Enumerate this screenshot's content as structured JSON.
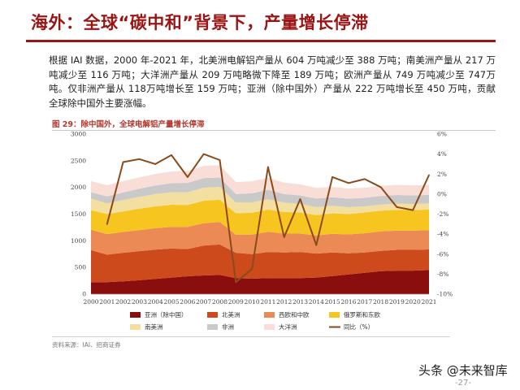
{
  "page": {
    "title": "海外：全球“碳中和”背景下，产量增长停滞",
    "intro": "根据 IAI 数据，2000 年-2021 年，北美洲电解铝产量从 604 万吨减少至 388 万吨；南美洲产量从 217 万吨减少至 116 万吨；大洋洲产量从 209 万吨略微下降至 189 万吨；欧洲产量从 749 万吨减少至 747万吨。仅非洲产量从 118万吨增长至 159 万吨；亚洲（除中国外）产量从 222 万吨增长至 450 万吨，贡献全球除中国外主要涨幅。",
    "figure_caption": "图 29：除中国外，全球电解铝产量增长停滞",
    "source": "资料来源：IAI、招商证券",
    "watermark": "头条 @未来智库",
    "page_number": "-27-"
  },
  "chart_data": {
    "type": "area",
    "x": [
      "2000",
      "2001",
      "2002",
      "2003",
      "2004",
      "2005",
      "2006",
      "2007",
      "2008",
      "2009",
      "2010",
      "2011",
      "2012",
      "2013",
      "2014",
      "2015",
      "2016",
      "2017",
      "2018",
      "2019",
      "2020",
      "2021"
    ],
    "ylim": [
      0,
      3000
    ],
    "y_ticks": [
      0,
      500,
      1000,
      1500,
      2000,
      2500,
      3000
    ],
    "y2lim": [
      -10,
      6
    ],
    "y2_ticks": [
      "6%",
      "4%",
      "2%",
      "0%",
      "-2%",
      "-4%",
      "-6%",
      "-8%",
      "-10%"
    ],
    "grid": false,
    "legend_position": "bottom",
    "series": [
      {
        "name": "亚洲（除中国）",
        "color": "#8b0e0e",
        "values": [
          222,
          225,
          240,
          260,
          285,
          310,
          335,
          350,
          360,
          300,
          290,
          300,
          300,
          300,
          310,
          340,
          370,
          400,
          430,
          440,
          440,
          450
        ]
      },
      {
        "name": "北美洲",
        "color": "#cc4a1c",
        "values": [
          604,
          515,
          535,
          545,
          550,
          545,
          510,
          560,
          570,
          475,
          460,
          490,
          480,
          490,
          450,
          440,
          395,
          380,
          380,
          390,
          390,
          388
        ]
      },
      {
        "name": "西欧和中欧",
        "color": "#ec8a55",
        "values": [
          380,
          385,
          390,
          395,
          400,
          405,
          415,
          420,
          420,
          340,
          365,
          380,
          355,
          345,
          340,
          350,
          355,
          360,
          365,
          360,
          360,
          360
        ]
      },
      {
        "name": "俄罗斯和东欧",
        "color": "#f7c51f",
        "values": [
          369,
          375,
          385,
          400,
          410,
          415,
          410,
          420,
          420,
          400,
          410,
          415,
          405,
          395,
          380,
          385,
          380,
          390,
          390,
          390,
          385,
          387
        ]
      },
      {
        "name": "南美洲",
        "color": "#f3dfa0",
        "values": [
          217,
          200,
          215,
          225,
          230,
          235,
          240,
          245,
          240,
          200,
          195,
          195,
          175,
          160,
          150,
          140,
          130,
          115,
          115,
          118,
          116,
          116
        ]
      },
      {
        "name": "非洲",
        "color": "#c9c9c9",
        "values": [
          118,
          130,
          140,
          150,
          160,
          170,
          175,
          180,
          175,
          160,
          170,
          175,
          160,
          160,
          160,
          160,
          160,
          160,
          160,
          160,
          159,
          159
        ]
      },
      {
        "name": "大洋洲",
        "color": "#f8ded7",
        "values": [
          209,
          210,
          212,
          215,
          218,
          220,
          225,
          230,
          230,
          225,
          225,
          225,
          215,
          210,
          200,
          195,
          190,
          190,
          190,
          190,
          189,
          189
        ]
      }
    ],
    "line": {
      "name": "同比（%）",
      "color": "#8b4a1a",
      "axis": "right",
      "values": [
        -3.0,
        3.2,
        3.5,
        3.0,
        3.9,
        1.7,
        4.0,
        3.4,
        -8.8,
        -7.5,
        2.7,
        -4.3,
        -0.5,
        -5.1,
        1.7,
        1.1,
        1.5,
        0.7,
        -1.3,
        -1.6,
        1.9
      ]
    }
  }
}
